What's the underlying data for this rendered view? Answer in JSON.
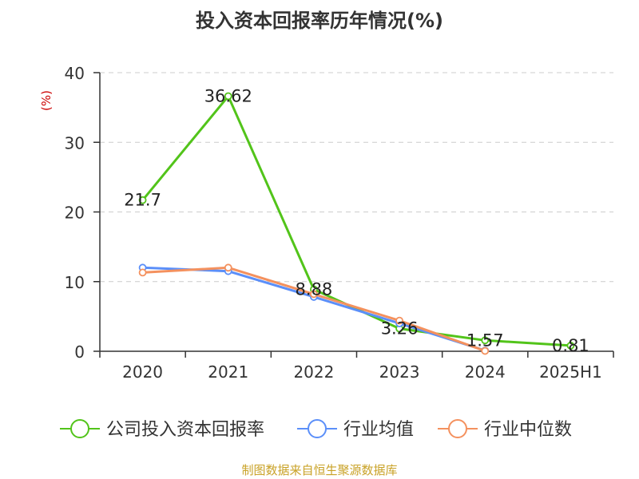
{
  "chart_data": {
    "type": "line",
    "title": "投入资本回报率历年情况(%)",
    "ylabel": "(%)",
    "xlabel": "",
    "categories": [
      "2020",
      "2021",
      "2022",
      "2023",
      "2024",
      "2025H1"
    ],
    "ylim": [
      0,
      40
    ],
    "yticks": [
      0,
      10,
      20,
      30,
      40
    ],
    "grid": true,
    "legend_position": "bottom",
    "series": [
      {
        "name": "公司投入资本回报率",
        "color": "#52c41a",
        "values": [
          21.7,
          36.62,
          8.88,
          3.26,
          1.57,
          0.81
        ],
        "data_labels": [
          "21.7",
          "36.62",
          "8.88",
          "3.26",
          "1.57",
          "0.81"
        ]
      },
      {
        "name": "行业均值",
        "color": "#5b8ff9",
        "values": [
          12.0,
          11.5,
          7.8,
          4.0,
          0.1,
          null
        ]
      },
      {
        "name": "行业中位数",
        "color": "#f4915e",
        "values": [
          11.3,
          12.0,
          8.2,
          4.4,
          0.05,
          null
        ]
      }
    ]
  },
  "source": "制图数据来自恒生聚源数据库"
}
